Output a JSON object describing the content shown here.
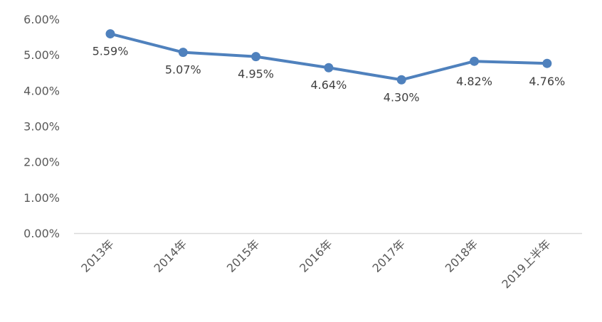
{
  "chart_data": {
    "type": "line",
    "title": "",
    "xlabel": "",
    "ylabel": "",
    "categories": [
      "2013年",
      "2014年",
      "2015年",
      "2016年",
      "2017年",
      "2018年",
      "2019上半年"
    ],
    "series": [
      {
        "values": [
          5.59,
          5.07,
          4.95,
          4.64,
          4.3,
          4.82,
          4.76
        ],
        "labels": [
          "5.59%",
          "5.07%",
          "4.95%",
          "4.64%",
          "4.30%",
          "4.82%",
          "4.76%"
        ],
        "color": "#4f81bd"
      }
    ],
    "ylim": [
      0,
      6
    ],
    "yticks": [
      0,
      1,
      2,
      3,
      4,
      5,
      6
    ],
    "ytick_labels": [
      "0.00%",
      "1.00%",
      "2.00%",
      "3.00%",
      "4.00%",
      "5.00%",
      "6.00%"
    ],
    "grid": false,
    "legend": "none",
    "axis_color": "#d9d9d9"
  }
}
